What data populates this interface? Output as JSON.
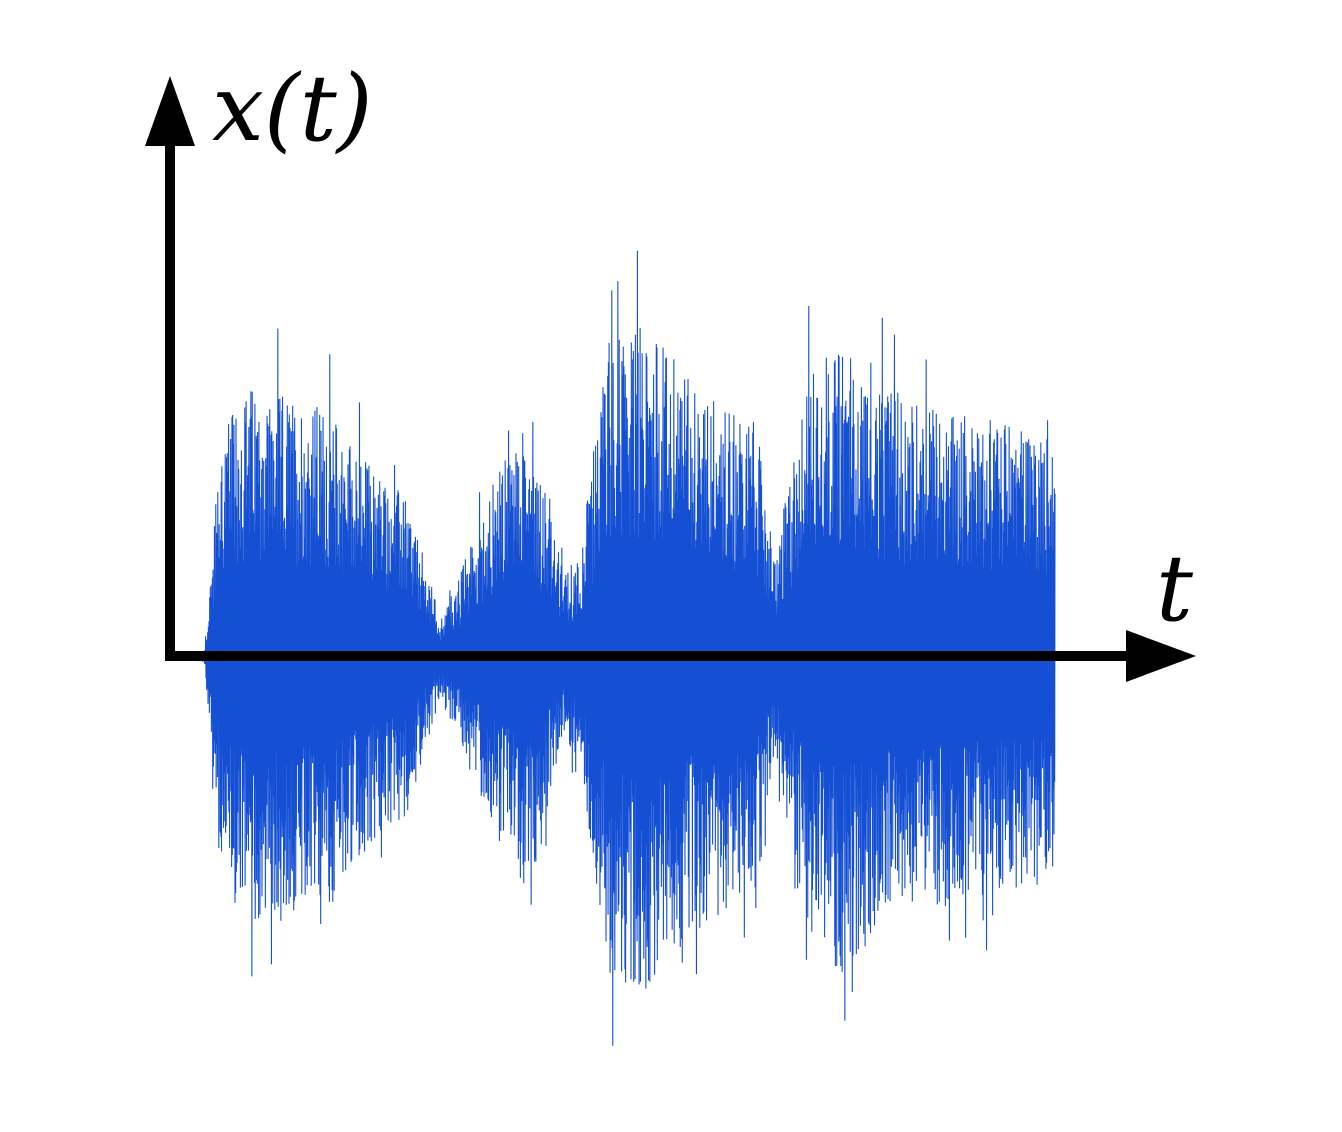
{
  "chart_data": {
    "type": "line",
    "title": "",
    "xlabel": "t",
    "ylabel": "x(t)",
    "xlim": [
      0,
      1
    ],
    "ylim": [
      -1,
      1
    ],
    "grid": false,
    "legend": "none",
    "x_ticks": [],
    "y_ticks": [],
    "line_color": "#1550d4",
    "axis_color": "#000000",
    "envelope": {
      "t": [
        0.0,
        0.03,
        0.05,
        0.08,
        0.12,
        0.17,
        0.22,
        0.26,
        0.3,
        0.32,
        0.36,
        0.4,
        0.44,
        0.46,
        0.49,
        0.53,
        0.58,
        0.62,
        0.66,
        0.68,
        0.72,
        0.76,
        0.8,
        0.84,
        0.88,
        0.92,
        0.98,
        1.0
      ],
      "amplitude": [
        0.0,
        0.02,
        0.7,
        0.85,
        0.82,
        0.78,
        0.6,
        0.5,
        0.12,
        0.25,
        0.55,
        0.75,
        0.25,
        0.35,
        1.0,
        1.05,
        0.9,
        0.8,
        0.72,
        0.3,
        0.9,
        1.0,
        0.85,
        0.8,
        0.78,
        0.75,
        0.72,
        0.7
      ]
    }
  }
}
